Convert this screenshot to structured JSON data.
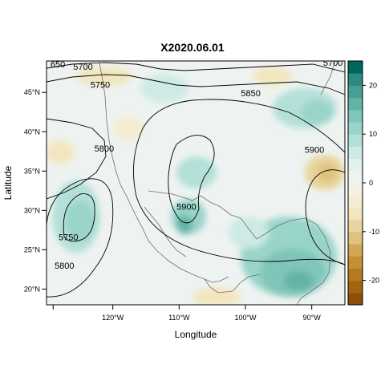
{
  "title": "X2020.06.01",
  "xlabel": "Longitude",
  "ylabel": "Latitude",
  "x_ticks": [
    {
      "lon": -120,
      "label": "120°W"
    },
    {
      "lon": -110,
      "label": "110°W"
    },
    {
      "lon": -100,
      "label": "100°W"
    },
    {
      "lon": -90,
      "label": "90°W"
    }
  ],
  "y_ticks": [
    {
      "lat": 20,
      "label": "20°N"
    },
    {
      "lat": 25,
      "label": "25°N"
    },
    {
      "lat": 30,
      "label": "30°N"
    },
    {
      "lat": 35,
      "label": "35°N"
    },
    {
      "lat": 40,
      "label": "40°N"
    },
    {
      "lat": 45,
      "label": "45°N"
    }
  ],
  "contour_labels": [
    {
      "text": "5700",
      "lon": -124.5,
      "lat": 47.9
    },
    {
      "text": "5700",
      "lon": -86.8,
      "lat": 48.4
    },
    {
      "text": "5750",
      "lon": -121.9,
      "lat": 45.6
    },
    {
      "text": "5800",
      "lon": -121.3,
      "lat": 37.5
    },
    {
      "text": "5850",
      "lon": -99.2,
      "lat": 44.5
    },
    {
      "text": "5900",
      "lon": -89.6,
      "lat": 37.3
    },
    {
      "text": "5900",
      "lon": -108.9,
      "lat": 30.1
    },
    {
      "text": "5750",
      "lon": -126.7,
      "lat": 26.2
    },
    {
      "text": "5800",
      "lon": -127.3,
      "lat": 22.6
    },
    {
      "text": "650",
      "lon": -128.3,
      "lat": 48.2
    }
  ],
  "colorbar": {
    "min": -25,
    "max": 25,
    "ticks": [
      {
        "value": 20,
        "label": "20"
      },
      {
        "value": 10,
        "label": "10"
      },
      {
        "value": 0,
        "label": "0"
      },
      {
        "value": -10,
        "label": "-10"
      },
      {
        "value": -20,
        "label": "-20"
      }
    ],
    "colors": [
      "#8c5109",
      "#a2640f",
      "#b57a20",
      "#c49033",
      "#d1a753",
      "#dfc27d",
      "#e8d49c",
      "#f2e6bf",
      "#f5ecd3",
      "#f5f0e6",
      "#eef3f1",
      "#e3f1ee",
      "#cdeae4",
      "#b3e0d8",
      "#99d4c9",
      "#7fc5b9",
      "#63b3a6",
      "#479f92",
      "#2c8a7f",
      "#01665e"
    ]
  },
  "contour_color": "#000000",
  "coast_color": "#6f6f6f",
  "map_extent": {
    "lon_min": -130,
    "lon_max": -85,
    "lat_min": 18,
    "lat_max": 49
  }
}
